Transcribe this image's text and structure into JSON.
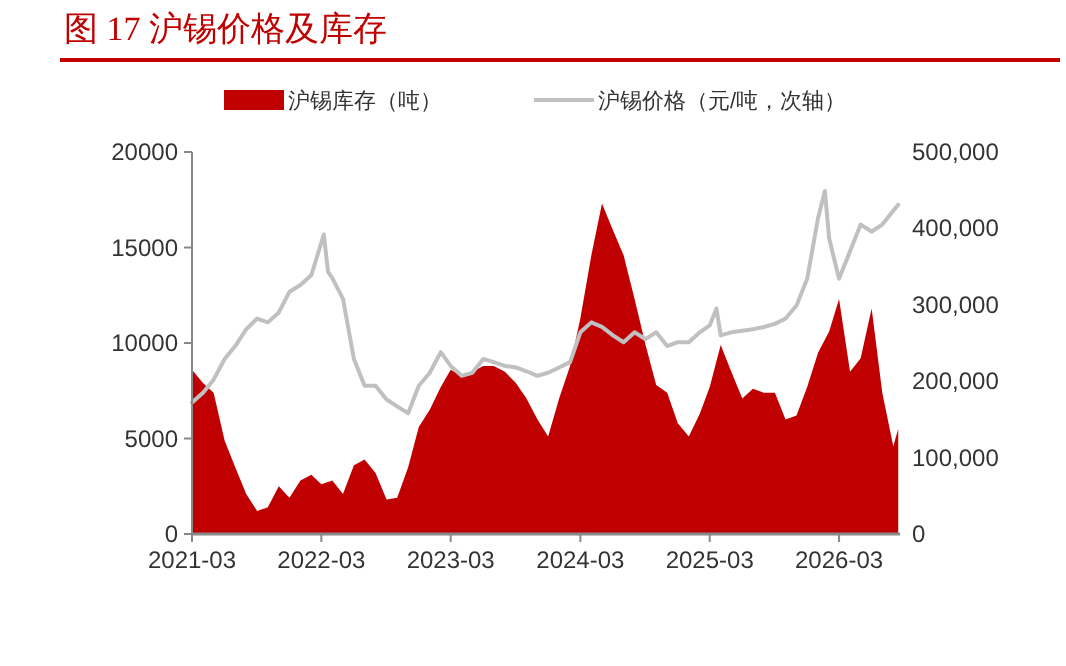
{
  "chart_data": {
    "type": "area",
    "title": "图 17  沪锡价格及库存",
    "legend": "top",
    "xlim": [
      "2021-03-01",
      "2026-08-20"
    ],
    "xticks": [
      {
        "value": "2021-03-01",
        "label": "2021-03"
      },
      {
        "value": "2022-03-01",
        "label": "2022-03"
      },
      {
        "value": "2023-03-01",
        "label": "2023-03"
      },
      {
        "value": "2024-03-01",
        "label": "2024-03"
      },
      {
        "value": "2025-03-01",
        "label": "2025-03"
      },
      {
        "value": "2026-03-01",
        "label": "2026-03"
      }
    ],
    "ylim": [
      0,
      20000
    ],
    "yticks": [
      0,
      5000,
      10000,
      15000,
      20000
    ],
    "y2lim": [
      0,
      500000
    ],
    "y2ticks": [
      0,
      {
        "value": 100000,
        "label": "100,000"
      },
      {
        "value": 200000,
        "label": "200,000"
      },
      {
        "value": 300000,
        "label": "300,000"
      },
      {
        "value": 400000,
        "label": "400,000"
      },
      {
        "value": 500000,
        "label": "500,000"
      }
    ],
    "series": [
      {
        "name": "沪锡库存（吨）",
        "color": "#c00000",
        "x": [
          "2021-03-01",
          "2021-04-01",
          "2021-05-01",
          "2021-06-01",
          "2021-07-01",
          "2021-08-01",
          "2021-09-01",
          "2021-10-01",
          "2021-11-01",
          "2021-12-01",
          "2022-01-01",
          "2022-02-01",
          "2022-03-01",
          "2022-04-01",
          "2022-05-01",
          "2022-06-01",
          "2022-07-01",
          "2022-08-01",
          "2022-09-01",
          "2022-10-01",
          "2022-11-01",
          "2022-12-01",
          "2023-01-01",
          "2023-02-01",
          "2023-03-01",
          "2023-04-01",
          "2023-05-01",
          "2023-06-01",
          "2023-07-01",
          "2023-08-01",
          "2023-09-01",
          "2023-10-01",
          "2023-11-01",
          "2023-12-01",
          "2024-01-01",
          "2024-02-01",
          "2024-03-01",
          "2024-04-01",
          "2024-05-01",
          "2024-06-01",
          "2024-07-01",
          "2024-08-01",
          "2024-09-01",
          "2024-10-01",
          "2024-11-01",
          "2024-12-01",
          "2025-01-01",
          "2025-02-01",
          "2025-03-01",
          "2025-04-01",
          "2025-05-01",
          "2025-06-01",
          "2025-07-01",
          "2025-08-01",
          "2025-09-01",
          "2025-10-01",
          "2025-11-01",
          "2025-12-01",
          "2026-01-01",
          "2026-02-01",
          "2026-03-01",
          "2026-04-01",
          "2026-05-01",
          "2026-06-01",
          "2026-07-01",
          "2026-08-01",
          "2026-08-15"
        ],
        "values": [
          8600,
          7900,
          7400,
          4900,
          3500,
          2100,
          1200,
          1400,
          2500,
          1900,
          2800,
          3100,
          2600,
          2800,
          2100,
          3600,
          3900,
          3200,
          1800,
          1900,
          3500,
          5600,
          6500,
          7700,
          8600,
          8300,
          8500,
          8800,
          8800,
          8500,
          7900,
          7100,
          6000,
          5100,
          7100,
          8800,
          11300,
          14600,
          17300,
          15900,
          14600,
          12300,
          9900,
          7800,
          7400,
          5800,
          5100,
          6300,
          7700,
          9900,
          8500,
          7100,
          7600,
          7400,
          7400,
          6000,
          6200,
          7700,
          9500,
          10600,
          12300,
          8500,
          9200,
          11800,
          7400,
          4600,
          5500
        ]
      },
      {
        "name": "沪锡价格（元/吨，次轴）",
        "type": "line",
        "axis": "y2",
        "color": "#c0c0c0",
        "x": [
          "2021-03-01",
          "2021-04-01",
          "2021-05-01",
          "2021-06-01",
          "2021-07-01",
          "2021-08-01",
          "2021-09-01",
          "2021-10-01",
          "2021-11-01",
          "2021-12-01",
          "2022-01-01",
          "2022-02-01",
          "2022-03-08",
          "2022-03-20",
          "2022-04-01",
          "2022-05-01",
          "2022-06-01",
          "2022-07-01",
          "2022-08-01",
          "2022-09-01",
          "2022-10-01",
          "2022-11-01",
          "2022-12-01",
          "2023-01-01",
          "2023-02-01",
          "2023-03-01",
          "2023-04-01",
          "2023-05-01",
          "2023-06-01",
          "2023-07-01",
          "2023-08-01",
          "2023-09-01",
          "2023-10-01",
          "2023-11-01",
          "2023-12-01",
          "2024-01-01",
          "2024-02-01",
          "2024-03-01",
          "2024-04-01",
          "2024-05-01",
          "2024-06-01",
          "2024-07-01",
          "2024-08-01",
          "2024-09-01",
          "2024-10-01",
          "2024-11-01",
          "2024-12-01",
          "2025-01-01",
          "2025-02-01",
          "2025-03-01",
          "2025-03-20",
          "2025-04-01",
          "2025-05-01",
          "2025-06-01",
          "2025-07-01",
          "2025-08-01",
          "2025-09-01",
          "2025-10-01",
          "2025-11-01",
          "2025-12-01",
          "2026-01-01",
          "2026-01-20",
          "2026-02-01",
          "2026-03-01",
          "2026-04-01",
          "2026-05-01",
          "2026-06-01",
          "2026-07-01",
          "2026-08-01",
          "2026-08-15"
        ],
        "values": [
          172000,
          185000,
          202000,
          229000,
          246000,
          268000,
          282000,
          277000,
          290000,
          317000,
          326000,
          339000,
          392000,
          343000,
          335000,
          308000,
          229000,
          194000,
          194000,
          176000,
          167000,
          158000,
          194000,
          211000,
          238000,
          220000,
          207000,
          211000,
          229000,
          225000,
          220000,
          218000,
          213000,
          207000,
          211000,
          218000,
          225000,
          264000,
          277000,
          271000,
          260000,
          251000,
          264000,
          255000,
          264000,
          246000,
          251000,
          251000,
          264000,
          273000,
          295000,
          260000,
          264000,
          266000,
          268000,
          271000,
          275000,
          282000,
          299000,
          334000,
          414000,
          449000,
          387000,
          334000,
          370000,
          405000,
          396000,
          405000,
          423000,
          431000
        ]
      }
    ]
  }
}
